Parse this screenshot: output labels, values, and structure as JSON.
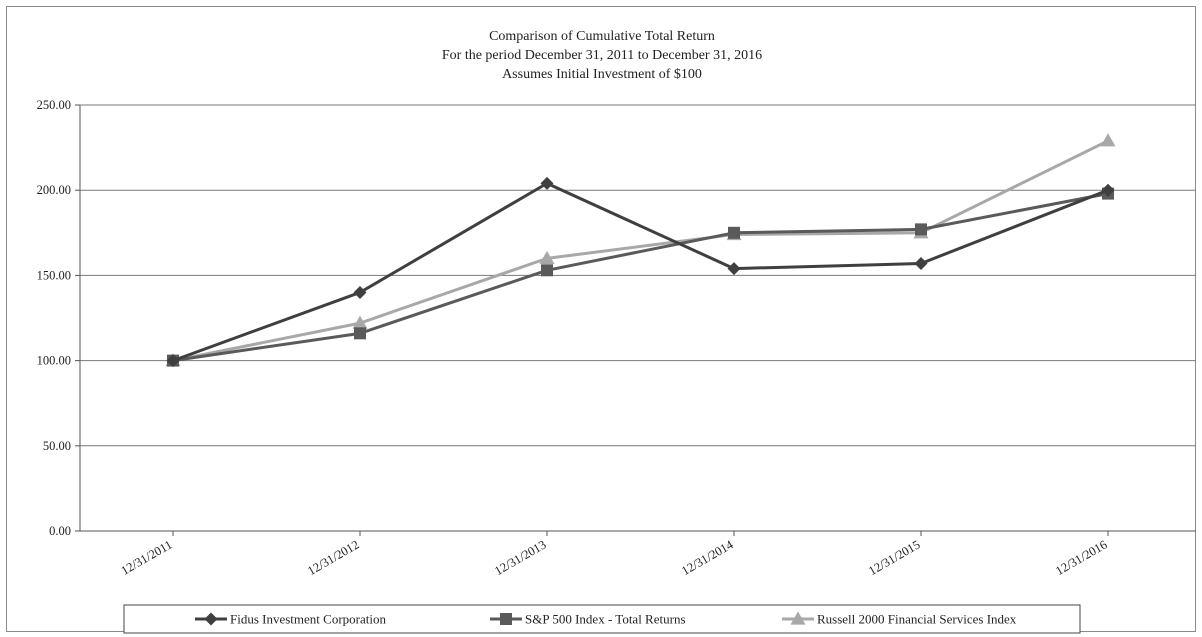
{
  "chart_data": {
    "type": "line",
    "title": [
      "Comparison of Cumulative Total Return",
      "For the period December 31, 2011 to December 31, 2016",
      "Assumes Initial Investment of $100"
    ],
    "categories": [
      "12/31/2011",
      "12/31/2012",
      "12/31/2013",
      "12/31/2014",
      "12/31/2015",
      "12/31/2016"
    ],
    "ylim": [
      0,
      250
    ],
    "yticks": [
      "0.00",
      "50.00",
      "100.00",
      "150.00",
      "200.00",
      "250.00"
    ],
    "grid": true,
    "legend_position": "bottom",
    "series": [
      {
        "name": "Fidus Investment Corporation",
        "marker": "diamond",
        "color": "#3f3f3f",
        "values": [
          100,
          140,
          204,
          154,
          157,
          200
        ]
      },
      {
        "name": "S&P 500 Index - Total Returns",
        "marker": "square",
        "color": "#5a5a5a",
        "values": [
          100,
          116,
          153,
          175,
          177,
          198
        ]
      },
      {
        "name": "Russell 2000 Financial Services Index",
        "marker": "triangle",
        "color": "#a8a8a8",
        "values": [
          100,
          122,
          160,
          174,
          175,
          229
        ]
      }
    ]
  }
}
